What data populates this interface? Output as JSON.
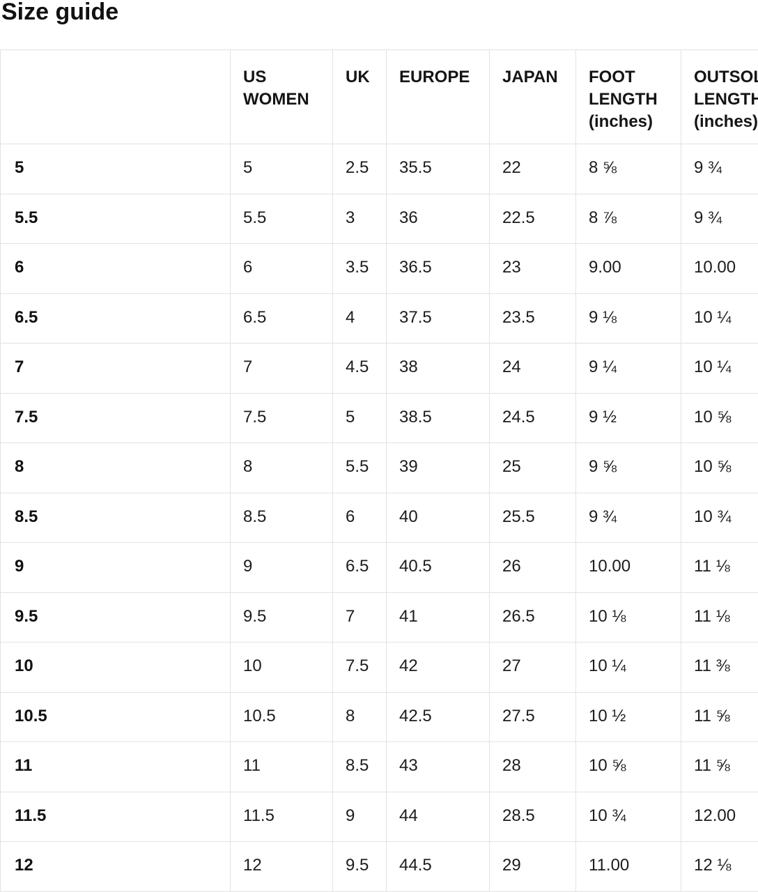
{
  "page": {
    "title": "Size guide"
  },
  "table": {
    "columns": [
      {
        "key": "size",
        "label": ""
      },
      {
        "key": "us_women",
        "label": "US WOMEN"
      },
      {
        "key": "uk",
        "label": "UK"
      },
      {
        "key": "europe",
        "label": "EUROPE"
      },
      {
        "key": "japan",
        "label": "JAPAN"
      },
      {
        "key": "foot_length",
        "label": "FOOT LENGTH (inches)"
      },
      {
        "key": "outsole_length",
        "label": "OUTSOLE LENGTH (inches)"
      }
    ],
    "rows": [
      [
        "5",
        "5",
        "2.5",
        "35.5",
        "22",
        "8 ⅝",
        "9 ¾"
      ],
      [
        "5.5",
        "5.5",
        "3",
        "36",
        "22.5",
        "8 ⅞",
        "9 ¾"
      ],
      [
        "6",
        "6",
        "3.5",
        "36.5",
        "23",
        "9.00",
        "10.00"
      ],
      [
        "6.5",
        "6.5",
        "4",
        "37.5",
        "23.5",
        "9 ⅛",
        "10 ¼"
      ],
      [
        "7",
        "7",
        "4.5",
        "38",
        "24",
        "9 ¼",
        "10 ¼"
      ],
      [
        "7.5",
        "7.5",
        "5",
        "38.5",
        "24.5",
        "9 ½",
        "10 ⅝"
      ],
      [
        "8",
        "8",
        "5.5",
        "39",
        "25",
        "9 ⅝",
        "10 ⅝"
      ],
      [
        "8.5",
        "8.5",
        "6",
        "40",
        "25.5",
        "9 ¾",
        "10 ¾"
      ],
      [
        "9",
        "9",
        "6.5",
        "40.5",
        "26",
        "10.00",
        "11 ⅛"
      ],
      [
        "9.5",
        "9.5",
        "7",
        "41",
        "26.5",
        "10 ⅛",
        "11 ⅛"
      ],
      [
        "10",
        "10",
        "7.5",
        "42",
        "27",
        "10 ¼",
        "11 ⅜"
      ],
      [
        "10.5",
        "10.5",
        "8",
        "42.5",
        "27.5",
        "10 ½",
        "11 ⅝"
      ],
      [
        "11",
        "11",
        "8.5",
        "43",
        "28",
        "10 ⅝",
        "11 ⅝"
      ],
      [
        "11.5",
        "11.5",
        "9",
        "44",
        "28.5",
        "10 ¾",
        "12.00"
      ],
      [
        "12",
        "12",
        "9.5",
        "44.5",
        "29",
        "11.00",
        "12 ⅛"
      ]
    ]
  }
}
